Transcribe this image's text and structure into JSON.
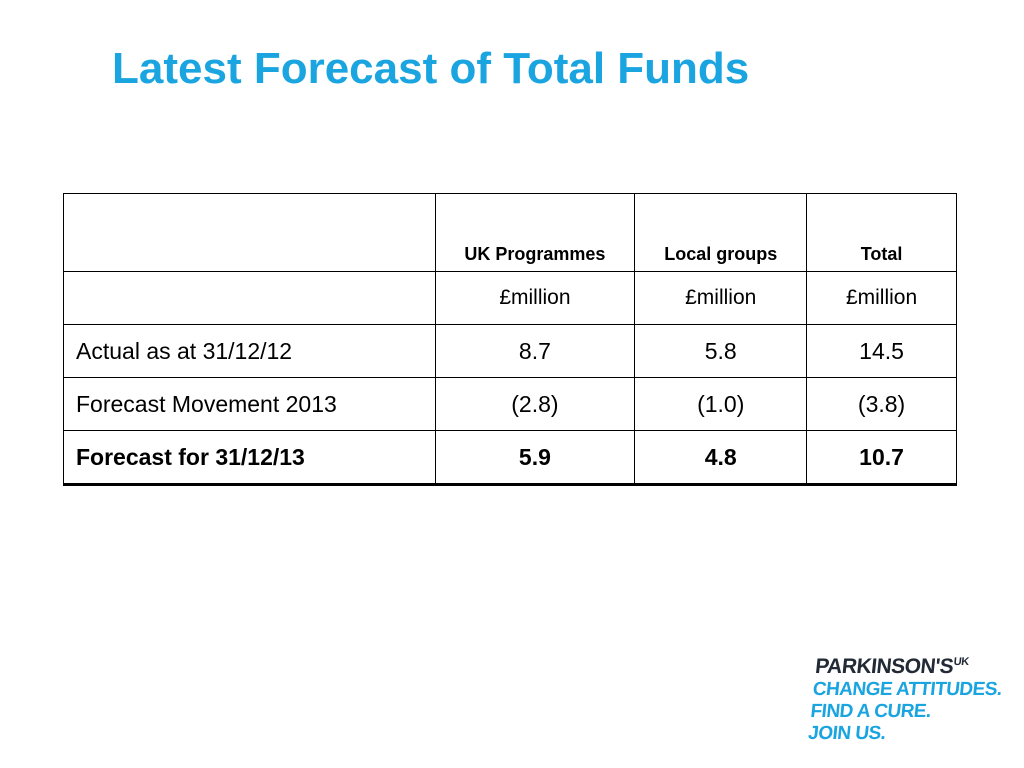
{
  "slide": {
    "title": "Latest Forecast of Total Funds"
  },
  "table": {
    "headers": [
      "",
      "UK Programmes",
      "Local groups",
      "Total"
    ],
    "units": [
      "",
      "£million",
      "£million",
      "£million"
    ],
    "rows": [
      {
        "label": "Actual as at 31/12/12",
        "uk": "8.7",
        "local": "5.8",
        "total": "14.5"
      },
      {
        "label": "Forecast Movement  2013",
        "uk": "(2.8)",
        "local": "(1.0)",
        "total": "(3.8)"
      },
      {
        "label": "Forecast for 31/12/13",
        "uk": "5.9",
        "local": "4.8",
        "total": "10.7"
      }
    ]
  },
  "logo": {
    "brand": "PARKINSON'S",
    "brand_suffix": "UK",
    "line1": "CHANGE ATTITUDES.",
    "line2": "FIND A CURE.",
    "line3": "JOIN US."
  },
  "colors": {
    "title": "#1aa4e0",
    "logo_brand": "#222a35",
    "logo_tagline": "#1aa4e0"
  }
}
